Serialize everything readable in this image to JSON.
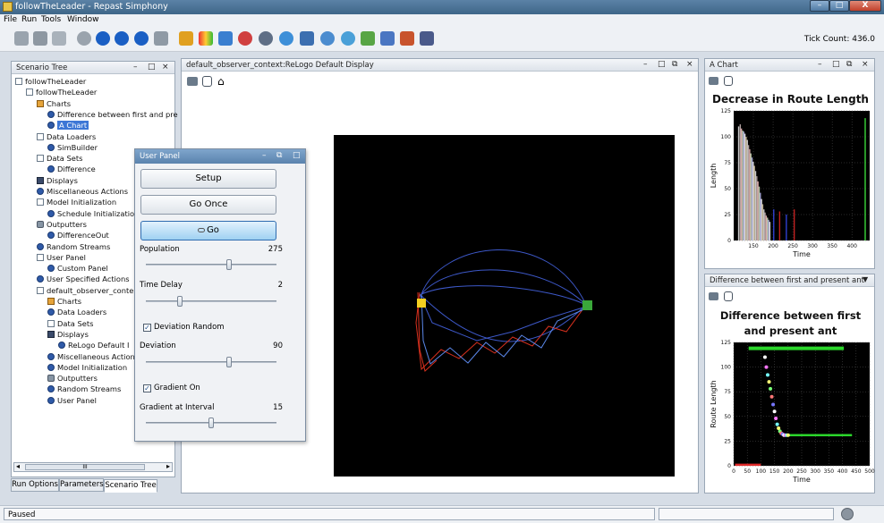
{
  "window": {
    "title": "followTheLeader - Repast Simphony",
    "minimize": "–",
    "maximize": "□",
    "close": "X"
  },
  "menu": [
    "File",
    "Run",
    "Tools",
    "Window"
  ],
  "toolbar": {
    "icons": [
      "new-scenario-icon",
      "save-icon",
      "database-icon",
      "power-icon",
      "play-icon",
      "step-icon",
      "pause-icon",
      "stop-icon",
      "reset-icon",
      "lambda-icon",
      "chart-icon",
      "group-icon",
      "paint-icon",
      "cylinder-icon",
      "globe-icon",
      "image-icon",
      "network-icon",
      "search-icon",
      "map-icon",
      "grid-icon",
      "reader-icon",
      "film-icon"
    ],
    "tick_label": "Tick Count: 436.0"
  },
  "scenario_tree": {
    "title": "Scenario Tree",
    "controls": [
      "–",
      "□",
      "×"
    ],
    "items": [
      {
        "label": "followTheLeader",
        "icon": "doc",
        "indent": 0
      },
      {
        "label": "followTheLeader",
        "icon": "doc",
        "indent": 1
      },
      {
        "label": "Charts",
        "icon": "chart",
        "indent": 2
      },
      {
        "label": "Difference between first and pre",
        "icon": "circle",
        "indent": 3
      },
      {
        "label": "A Chart",
        "icon": "circle",
        "indent": 3,
        "selected": true
      },
      {
        "label": "Data Loaders",
        "icon": "doc",
        "indent": 2
      },
      {
        "label": "SimBuilder",
        "icon": "circle",
        "indent": 3
      },
      {
        "label": "Data Sets",
        "icon": "doc",
        "indent": 2
      },
      {
        "label": "Difference",
        "icon": "circle",
        "indent": 3
      },
      {
        "label": "Displays",
        "icon": "monitor",
        "indent": 2
      },
      {
        "label": "Miscellaneous Actions",
        "icon": "circle",
        "indent": 2
      },
      {
        "label": "Model Initialization",
        "icon": "doc",
        "indent": 2
      },
      {
        "label": "Schedule Initializatio",
        "icon": "circle",
        "indent": 3
      },
      {
        "label": "Outputters",
        "icon": "disk",
        "indent": 2
      },
      {
        "label": "DifferenceOut",
        "icon": "circle",
        "indent": 3
      },
      {
        "label": "Random Streams",
        "icon": "circle",
        "indent": 2
      },
      {
        "label": "User Panel",
        "icon": "doc",
        "indent": 2
      },
      {
        "label": "Custom Panel",
        "icon": "circle",
        "indent": 3
      },
      {
        "label": "User Specified Actions",
        "icon": "circle",
        "indent": 2
      },
      {
        "label": "default_observer_conte",
        "icon": "doc",
        "indent": 2
      },
      {
        "label": "Charts",
        "icon": "chart",
        "indent": 3
      },
      {
        "label": "Data Loaders",
        "icon": "circle",
        "indent": 3
      },
      {
        "label": "Data Sets",
        "icon": "doc",
        "indent": 3
      },
      {
        "label": "Displays",
        "icon": "monitor",
        "indent": 3
      },
      {
        "label": "ReLogo Default I",
        "icon": "circle",
        "indent": 4
      },
      {
        "label": "Miscellaneous Action",
        "icon": "circle",
        "indent": 3
      },
      {
        "label": "Model Initialization",
        "icon": "circle",
        "indent": 3
      },
      {
        "label": "Outputters",
        "icon": "disk",
        "indent": 3
      },
      {
        "label": "Random Streams",
        "icon": "circle",
        "indent": 3
      },
      {
        "label": "User Panel",
        "icon": "circle",
        "indent": 3
      }
    ],
    "scroll_thumb": "III",
    "tabs": [
      "Run Options",
      "Parameters",
      "Scenario Tree"
    ],
    "active_tab": "Scenario Tree"
  },
  "user_panel": {
    "title": "User Panel",
    "controls": [
      "–",
      "⧉",
      "□"
    ],
    "buttons": {
      "setup": "Setup",
      "go_once": "Go Once",
      "go": "Go"
    },
    "sliders": [
      {
        "label": "Population",
        "value": "275",
        "level": 0.64
      },
      {
        "label": "Time Delay",
        "value": "2",
        "level": 0.25
      },
      {
        "label": "Deviation",
        "value": "90",
        "level": 0.64
      },
      {
        "label": "Gradient at Interval",
        "value": "15",
        "level": 0.5
      }
    ],
    "checkboxes": [
      {
        "label": "Deviation Random",
        "checked": true
      },
      {
        "label": "Gradient On",
        "checked": true
      }
    ]
  },
  "display": {
    "title": "default_observer_context:ReLogo Default Display",
    "controls": [
      "–",
      "□",
      "⧉",
      "×"
    ],
    "tools": [
      "camera-icon",
      "pan-icon",
      "home-icon"
    ]
  },
  "chart_a": {
    "header": "A Chart",
    "controls": [
      "–",
      "□",
      "⧉",
      "×"
    ],
    "tools": [
      "camera-icon",
      "pan-icon"
    ],
    "chart_data": {
      "type": "bar",
      "title": "Decrease in Route Length",
      "xlabel": "Time",
      "ylabel": "Length",
      "xlim": [
        100,
        445
      ],
      "ylim": [
        0,
        125
      ],
      "xticks": [
        150,
        200,
        250,
        300,
        350,
        400
      ],
      "yticks": [
        0,
        25,
        50,
        75,
        100,
        125
      ],
      "approx_series": {
        "name": "",
        "x": [
          111,
          115,
          118,
          121,
          124,
          127,
          130,
          133,
          136,
          139,
          142,
          145,
          148,
          151,
          154,
          157,
          160,
          163,
          166,
          169,
          172,
          175,
          178,
          181,
          184,
          187,
          190,
          200,
          215,
          232,
          252,
          432
        ],
        "values": [
          110,
          112,
          108,
          106,
          105,
          103,
          100,
          97,
          92,
          88,
          84,
          80,
          76,
          72,
          67,
          62,
          57,
          52,
          46,
          40,
          35,
          30,
          27,
          24,
          22,
          20,
          18,
          30,
          28,
          25,
          30,
          118
        ]
      }
    }
  },
  "chart_b": {
    "header": "Difference between first and present ant",
    "tools": [
      "camera-icon",
      "pan-icon"
    ],
    "chart_data": {
      "type": "scatter",
      "title": "Difference between first and present ant",
      "xlabel": "Time",
      "ylabel": "Route Length",
      "xlim": [
        0,
        500
      ],
      "ylim": [
        0,
        125
      ],
      "xticks": [
        0,
        50,
        100,
        150,
        200,
        250,
        300,
        350,
        400,
        450,
        500
      ],
      "yticks": [
        0,
        25,
        50,
        75,
        100,
        125
      ],
      "series": [
        {
          "color": "#2bd62b",
          "x": [
            55,
            405
          ],
          "values": [
            119,
            119
          ]
        },
        {
          "color": "#2bd62b",
          "x": [
            200,
            435
          ],
          "values": [
            31,
            31
          ]
        },
        {
          "color": "#e02b2b",
          "x": [
            5,
            100
          ],
          "values": [
            1,
            1
          ]
        },
        {
          "color": "#ffffff",
          "x": [
            115,
            120,
            125,
            130,
            135,
            140,
            145,
            150,
            155,
            160,
            165,
            170,
            175,
            180,
            185,
            190,
            195,
            200
          ],
          "values": [
            110,
            100,
            92,
            85,
            78,
            70,
            62,
            55,
            48,
            42,
            38,
            35,
            33,
            32,
            31,
            31,
            31,
            31
          ]
        }
      ]
    }
  },
  "status": {
    "text": "Paused"
  }
}
